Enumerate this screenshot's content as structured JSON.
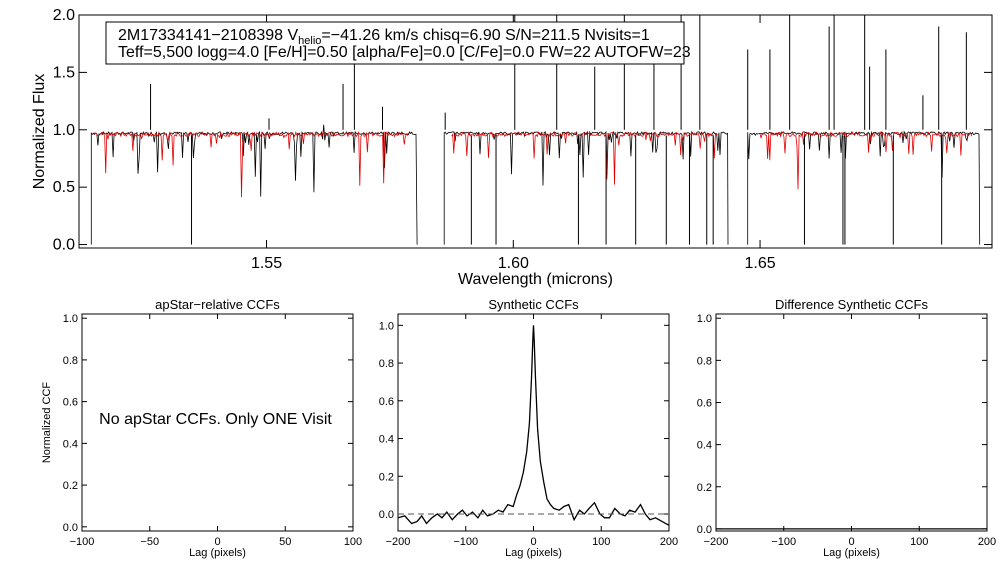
{
  "chart_data": [
    {
      "type": "line",
      "panel": "spectrum",
      "xlabel": "Wavelength (microns)",
      "ylabel": "Normalized Flux",
      "xlim": [
        1.512,
        1.697
      ],
      "ylim": [
        -0.03,
        2.0
      ],
      "xticks": [
        1.55,
        1.6,
        1.65
      ],
      "xtick_labels": [
        "1.55",
        "1.60",
        "1.65"
      ],
      "yticks": [
        0.0,
        0.5,
        1.0,
        1.5,
        2.0
      ],
      "ytick_labels": [
        "0.0",
        "0.5",
        "1.0",
        "1.5",
        "2.0"
      ],
      "annotation": {
        "line1_part1": "2M17334141−2108398  V",
        "line1_sub": "helio",
        "line1_part2": "=−41.26 km/s  chisq=6.90  S/N=211.5  Nvisits=1",
        "line2": "Teff=5,500 logg=4.0 [Fe/H]=0.50 [alpha/Fe]=0.0 [C/Fe]=0.0 FW=22 AUTOFW=23"
      },
      "chips": [
        [
          1.5145,
          1.5805
        ],
        [
          1.586,
          1.6435
        ],
        [
          1.6475,
          1.6945
        ]
      ],
      "model_chips": [
        [
          1.515,
          1.579
        ],
        [
          1.5875,
          1.6415
        ],
        [
          1.65,
          1.693
        ]
      ],
      "series": [
        {
          "name": "Observed spectrum",
          "color": "#000000",
          "continuum": 0.97,
          "noise": 0.012,
          "seed": 7
        },
        {
          "name": "Synthetic model",
          "color": "#e00000",
          "continuum": 0.96,
          "noise": 0.018,
          "seed": 19
        }
      ],
      "spikes": [
        1.5265,
        1.5505,
        1.5655,
        1.5678,
        1.5735,
        1.5862,
        1.6003,
        1.6088,
        1.6165,
        1.6225,
        1.6285,
        1.634,
        1.6378,
        1.6475,
        1.652,
        1.656,
        1.664,
        1.665,
        1.6712,
        1.6722,
        1.6755,
        1.683,
        1.6862,
        1.6918
      ],
      "spike_heights": [
        1.4,
        1.1,
        1.4,
        1.7,
        1.2,
        1.15,
        2.0,
        2.0,
        1.55,
        2.0,
        1.7,
        2.0,
        2.0,
        1.7,
        1.7,
        2.0,
        1.9,
        2.0,
        2.0,
        1.55,
        1.7,
        1.3,
        1.9,
        1.85
      ],
      "drops": [
        1.5348,
        1.5915,
        1.5965,
        1.6132,
        1.6188,
        1.6248,
        1.631,
        1.6357,
        1.6392,
        1.6405,
        1.659,
        1.6668,
        1.6672,
        1.677,
        1.6868
      ]
    },
    {
      "type": "line",
      "panel": "apstar",
      "title": "apStar−relative CCFs",
      "xlabel": "Lag (pixels)",
      "ylabel": "Normalized CCF",
      "xlim": [
        -100,
        100
      ],
      "ylim": [
        -0.02,
        1.02
      ],
      "xticks": [
        -100,
        -50,
        0,
        50,
        100
      ],
      "xtick_labels": [
        "−100",
        "−50",
        "0",
        "50",
        "100"
      ],
      "yticks": [
        0.0,
        0.2,
        0.4,
        0.6,
        0.8,
        1.0
      ],
      "ytick_labels": [
        "0.0",
        "0.2",
        "0.4",
        "0.6",
        "0.8",
        "1.0"
      ],
      "message": "No apStar CCFs.  Only ONE Visit",
      "series": []
    },
    {
      "type": "line",
      "panel": "synthetic",
      "title": "Synthetic CCFs",
      "xlabel": "Lag (pixels)",
      "xlim": [
        -200,
        200
      ],
      "ylim": [
        -0.09,
        1.06
      ],
      "xticks": [
        -200,
        -100,
        0,
        100,
        200
      ],
      "xtick_labels": [
        "−200",
        "−100",
        "0",
        "100",
        "200"
      ],
      "yticks": [
        0.0,
        0.2,
        0.4,
        0.6,
        0.8,
        1.0
      ],
      "ytick_labels": [
        "0.0",
        "0.2",
        "0.4",
        "0.6",
        "0.8",
        "1.0"
      ],
      "series": [
        {
          "name": "CCF",
          "style": "solid",
          "color": "#000000",
          "x": [
            -200,
            -190,
            -180,
            -172,
            -165,
            -158,
            -150,
            -142,
            -135,
            -128,
            -120,
            -112,
            -105,
            -98,
            -90,
            -82,
            -75,
            -68,
            -60,
            -52,
            -45,
            -38,
            -30,
            -25,
            -20,
            -15,
            -10,
            -6,
            -3,
            -1,
            0,
            1,
            3,
            6,
            10,
            15,
            20,
            25,
            30,
            38,
            45,
            52,
            60,
            68,
            75,
            82,
            90,
            98,
            105,
            112,
            120,
            128,
            135,
            142,
            150,
            158,
            165,
            172,
            180,
            190,
            200
          ],
          "y": [
            -0.02,
            -0.01,
            -0.05,
            -0.04,
            -0.01,
            -0.05,
            -0.02,
            0.0,
            -0.02,
            0.01,
            -0.03,
            0.0,
            0.02,
            -0.01,
            0.01,
            -0.02,
            0.02,
            -0.01,
            0.0,
            0.02,
            0.01,
            0.05,
            0.04,
            0.1,
            0.15,
            0.22,
            0.33,
            0.48,
            0.72,
            0.92,
            1.0,
            0.92,
            0.72,
            0.45,
            0.28,
            0.17,
            0.08,
            0.05,
            0.03,
            0.02,
            0.04,
            0.05,
            -0.03,
            0.02,
            0.0,
            0.03,
            0.06,
            0.0,
            -0.02,
            -0.02,
            0.03,
            0.0,
            -0.01,
            0.02,
            0.01,
            0.05,
            0.0,
            -0.03,
            -0.02,
            -0.04,
            -0.06
          ]
        },
        {
          "name": "zero level",
          "style": "dashed",
          "color": "#555555",
          "x": [
            -200,
            200
          ],
          "y": [
            0.0,
            0.0
          ]
        }
      ]
    },
    {
      "type": "line",
      "panel": "difference",
      "title": "Difference Synthetic CCFs",
      "xlabel": "Lag (pixels)",
      "xlim": [
        -200,
        200
      ],
      "ylim": [
        -0.01,
        1.02
      ],
      "xticks": [
        -200,
        -100,
        0,
        100,
        200
      ],
      "xtick_labels": [
        "−200",
        "−100",
        "0",
        "100",
        "200"
      ],
      "yticks": [
        0.0,
        0.2,
        0.4,
        0.6,
        0.8,
        1.0
      ],
      "ytick_labels": [
        "0.0",
        "0.2",
        "0.4",
        "0.6",
        "0.8",
        "1.0"
      ],
      "series": [
        {
          "name": "difference CCF",
          "style": "solid",
          "color": "#000000",
          "x": [
            -200,
            200
          ],
          "y": [
            0.0,
            0.0
          ]
        }
      ]
    }
  ]
}
